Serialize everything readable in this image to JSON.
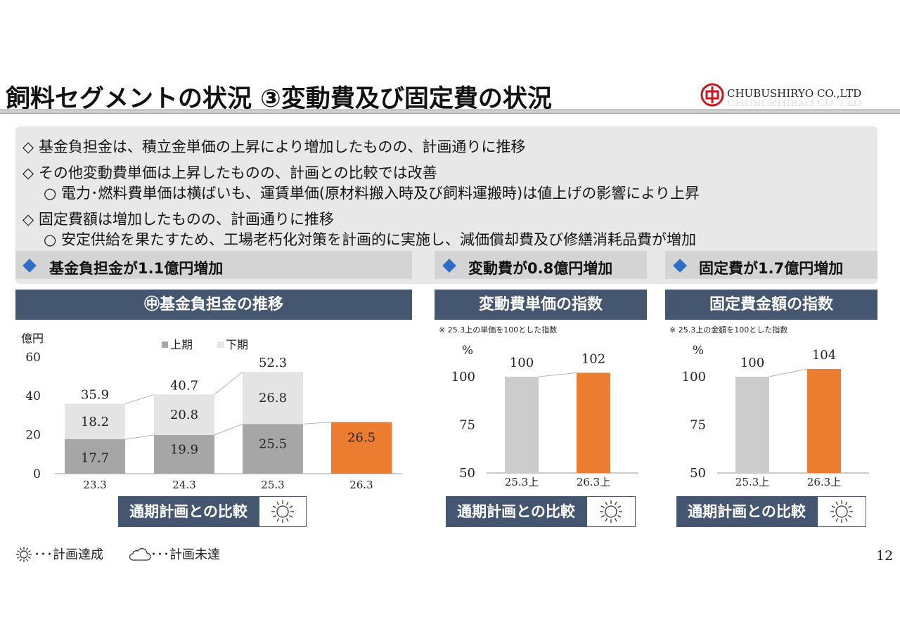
{
  "header": {
    "title": "飼料セグメントの状況 ③変動費及び固定費の状況",
    "company": "CHUBUSHIRYO CO.,LTD"
  },
  "summary": {
    "bullets": [
      "◇ 基金負担金は、積立金単価の上昇により増加したものの、計画通りに推移",
      "◇ その他変動費単価は上昇したものの、計画との比較では改善",
      "○ 電力･燃料費単価は横ばいも、運賃単価(原材料搬入時及び飼料運搬時)は値上げの影響により上昇",
      "◇ 固定費額は増加したものの、計画通りに推移",
      "○ 安定供給を果たすため、工場老朽化対策を計画的に実施し、減価償却費及び修繕消耗品費が増加"
    ],
    "highlights": [
      "基金負担金が1.1億円増加",
      "変動費が0.8億円増加",
      "固定費が1.7億円増加"
    ]
  },
  "panels": {
    "fund_title": "㊥基金負担金の推移",
    "var_title": "変動費単価の指数",
    "fix_title": "固定費金額の指数",
    "var_note": "※ 25.3上の単価を100とした指数",
    "fix_note": "※ 25.3上の金額を100とした指数",
    "unit_oku": "億円",
    "unit_pct": "%",
    "comparison_label": "通期計画との比較"
  },
  "legend": {
    "achieved": "･･･計画達成",
    "not_achieved": "･･･計画未達"
  },
  "page_number": "12",
  "colors": {
    "header_bg": "#455670",
    "first_half": "#a6a6a6",
    "second_half": "#e4e4e4",
    "highlight": "#ec7c30",
    "index_base": "#cccccc",
    "diamond": "#2d6fc7"
  },
  "chart_data": [
    {
      "type": "bar",
      "title": "㊥基金負担金の推移",
      "ylabel": "億円",
      "ylim": [
        0,
        60
      ],
      "yticks": [
        0,
        20,
        40,
        60
      ],
      "categories": [
        "23.3",
        "24.3",
        "25.3",
        "26.3"
      ],
      "series": [
        {
          "name": "上期",
          "values": [
            17.7,
            19.9,
            25.5,
            26.5
          ]
        },
        {
          "name": "下期",
          "values": [
            18.2,
            20.8,
            26.8,
            null
          ]
        }
      ],
      "totals": [
        35.9,
        40.7,
        52.3,
        null
      ],
      "labels": {
        "first": [
          "17.7",
          "19.9",
          "25.5",
          "26.5"
        ],
        "second": [
          "18.2",
          "20.8",
          "26.8"
        ],
        "totals": [
          "35.9",
          "40.7",
          "52.3"
        ]
      },
      "legend": [
        "上期",
        "下期"
      ]
    },
    {
      "type": "bar",
      "title": "変動費単価の指数",
      "ylabel": "%",
      "ylim": [
        50,
        100
      ],
      "yticks": [
        50,
        75,
        100
      ],
      "categories": [
        "25.3上",
        "26.3上"
      ],
      "values": [
        100,
        102
      ],
      "labels": [
        "100",
        "102"
      ]
    },
    {
      "type": "bar",
      "title": "固定費金額の指数",
      "ylabel": "%",
      "ylim": [
        50,
        100
      ],
      "yticks": [
        50,
        75,
        100
      ],
      "categories": [
        "25.3上",
        "26.3上"
      ],
      "values": [
        100,
        104
      ],
      "labels": [
        "100",
        "104"
      ]
    }
  ]
}
